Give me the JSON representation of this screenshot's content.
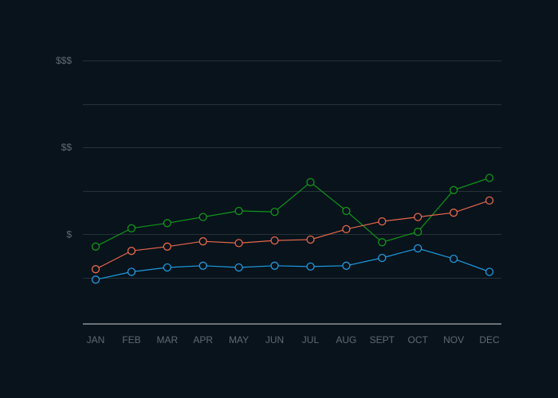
{
  "chart_data": {
    "type": "line",
    "categories": [
      "JAN",
      "FEB",
      "MAR",
      "APR",
      "MAY",
      "JUN",
      "JUL",
      "AUG",
      "SEPT",
      "OCT",
      "NOV",
      "DEC"
    ],
    "y_ticks": [
      {
        "value": 3,
        "label": "$$$"
      },
      {
        "value": 2,
        "label": "$$"
      },
      {
        "value": 1,
        "label": "$"
      }
    ],
    "ylim": [
      -0.03,
      3.0
    ],
    "grid_values": [
      3,
      2.5,
      2,
      1.5,
      1,
      0.5
    ],
    "grid": true,
    "series": [
      {
        "color": "#109618",
        "values": [
          0.86,
          1.07,
          1.13,
          1.2,
          1.27,
          1.26,
          1.6,
          1.27,
          0.91,
          1.03,
          1.51,
          1.65
        ]
      },
      {
        "color": "#e8684a",
        "values": [
          0.6,
          0.81,
          0.86,
          0.92,
          0.9,
          0.93,
          0.94,
          1.06,
          1.15,
          1.2,
          1.25,
          1.39
        ]
      },
      {
        "color": "#1e9be0",
        "values": [
          0.48,
          0.57,
          0.62,
          0.64,
          0.62,
          0.64,
          0.63,
          0.64,
          0.73,
          0.84,
          0.72,
          0.57
        ]
      }
    ]
  }
}
